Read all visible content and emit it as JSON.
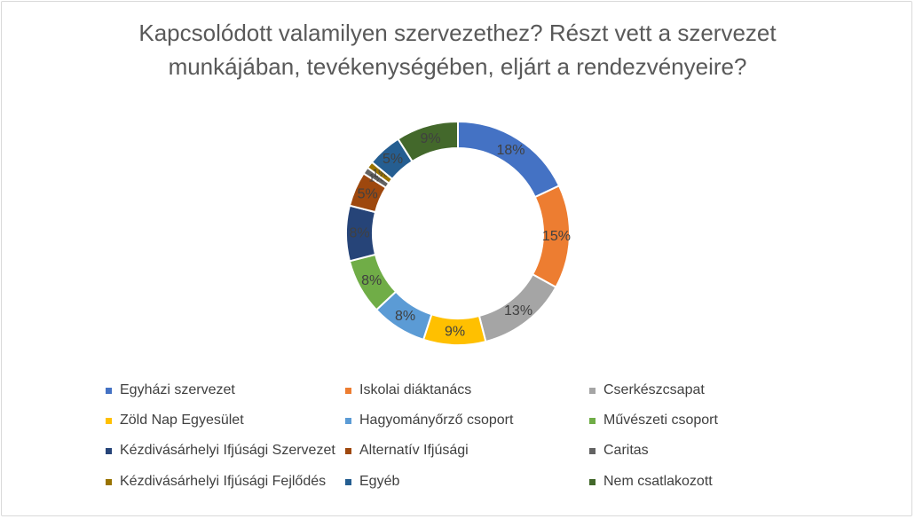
{
  "chart_data": {
    "type": "pie",
    "variant": "donut",
    "title_lines": [
      "Kapcsolódott valamilyen szervezethez?  Részt vett a szervezet",
      "munkájában, tevékenységében,  eljárt a rendezvényeire?"
    ],
    "legend_position": "bottom",
    "slices": [
      {
        "label": "Egyházi szervezet",
        "value": 18,
        "value_label": "18%",
        "color": "#4472C4"
      },
      {
        "label": "Iskolai diáktanács",
        "value": 15,
        "value_label": "15%",
        "color": "#ED7D31"
      },
      {
        "label": "Cserkészcsapat",
        "value": 13,
        "value_label": "13%",
        "color": "#A5A5A5"
      },
      {
        "label": "Zöld Nap Egyesület",
        "value": 9,
        "value_label": "9%",
        "color": "#FFC000"
      },
      {
        "label": "Hagyományőrző csoport",
        "value": 8,
        "value_label": "8%",
        "color": "#5B9BD5"
      },
      {
        "label": "Művészeti csoport",
        "value": 8,
        "value_label": "8%",
        "color": "#70AD47"
      },
      {
        "label": "Kézdivásárhelyi Ifjúsági Szervezet",
        "value": 8,
        "value_label": "8%",
        "color": "#264478"
      },
      {
        "label": "Alternatív Ifjúsági",
        "value": 5,
        "value_label": "5%",
        "color": "#9E480E"
      },
      {
        "label": "Caritas",
        "value": 1,
        "value_label": "1%",
        "color": "#636363"
      },
      {
        "label": "Kézdivásárhelyi Ifjúsági Fejlődés",
        "value": 1,
        "value_label": "1%",
        "color": "#997300"
      },
      {
        "label": "Egyéb",
        "value": 5,
        "value_label": "5%",
        "color": "#255E91"
      },
      {
        "label": "Nem csatlakozott",
        "value": 9,
        "value_label": "9%",
        "color": "#43682B"
      }
    ]
  }
}
